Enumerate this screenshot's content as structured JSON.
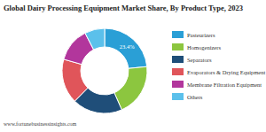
{
  "chart_data": {
    "type": "pie",
    "title": "Global Dairy Processing Equipment Market Share, By Product Type, 2023",
    "categories": [
      "Pasteurizers",
      "Homogenizers",
      "Separators",
      "Evaporators & Drying Equipment",
      "Membrane Filtration Equipment",
      "Others"
    ],
    "values": [
      23.4,
      20,
      19,
      17,
      13,
      7.6
    ],
    "value_labels": [
      "23.4%",
      null,
      null,
      null,
      null,
      null
    ],
    "colors": [
      "#2a9fd6",
      "#8cc63f",
      "#1f4e79",
      "#e0555a",
      "#b2369c",
      "#5bc0eb"
    ],
    "legend": "right",
    "source": "www.fortunebusinessinsights.com"
  }
}
